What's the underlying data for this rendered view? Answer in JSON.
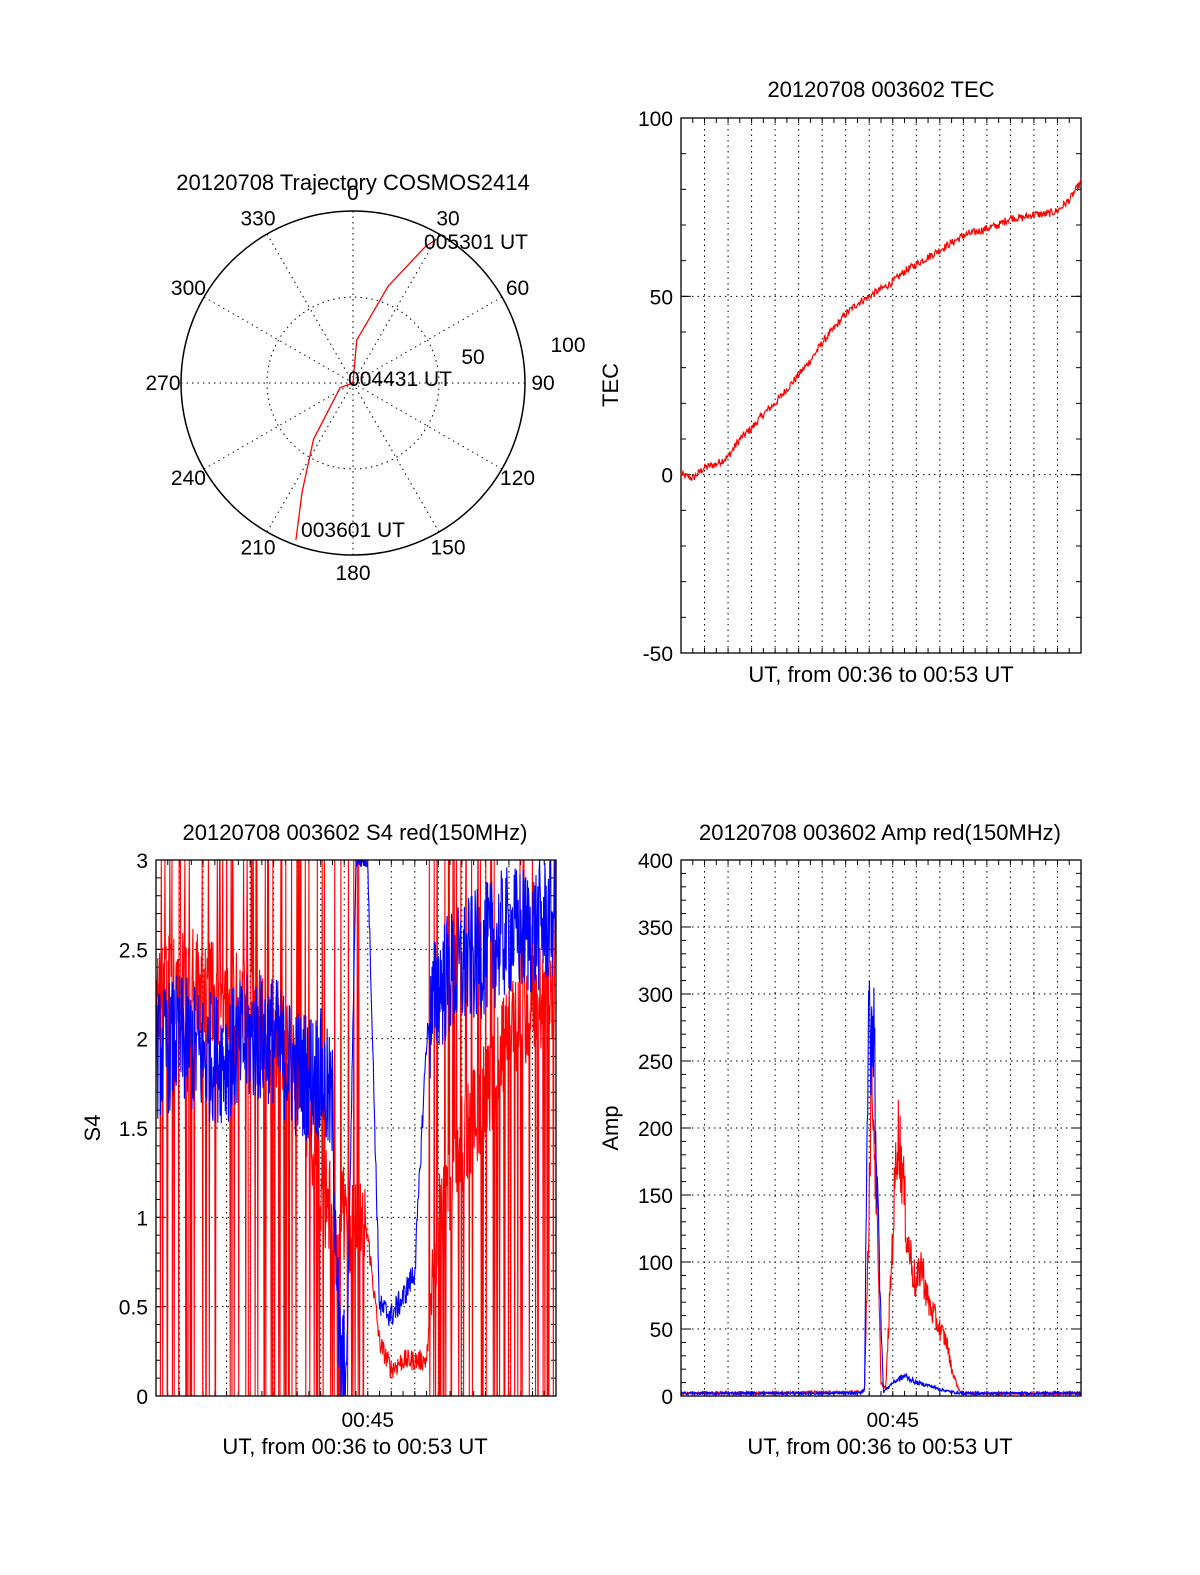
{
  "colors": {
    "red": "#ff0000",
    "blue": "#0000ff",
    "frame": "#000000"
  },
  "chart_data": [
    {
      "type": "polar",
      "title": "20120708 Trajectory COSMOS2414",
      "angle_labels": [
        "0",
        "30",
        "60",
        "90",
        "120",
        "150",
        "180",
        "210",
        "240",
        "270",
        "300",
        "330"
      ],
      "angle_values_deg": [
        0,
        30,
        60,
        90,
        120,
        150,
        180,
        210,
        240,
        270,
        300,
        330
      ],
      "radial_labels": [
        "50",
        "100"
      ],
      "radial_max": 100,
      "grid": true,
      "series": [
        {
          "color": "red",
          "points_az_r": [
            [
              200,
              97
            ],
            [
              205,
              70
            ],
            [
              215,
              40
            ],
            [
              250,
              8
            ],
            [
              0,
              0
            ],
            [
              5,
              25
            ],
            [
              20,
              60
            ],
            [
              28,
              90
            ],
            [
              30,
              96
            ]
          ]
        }
      ],
      "annotations": [
        {
          "text": "003601 UT",
          "az": 200,
          "r": 97
        },
        {
          "text": "004431 UT",
          "az": 0,
          "r": 0
        },
        {
          "text": "005301 UT",
          "az": 30,
          "r": 96
        }
      ]
    },
    {
      "type": "line",
      "title": "20120708 003602 TEC",
      "xlabel": "UT, from 00:36 to 00:53 UT",
      "ylabel": "TEC",
      "xlim": [
        0,
        17
      ],
      "ylim": [
        -50,
        100
      ],
      "yticks": [
        "-50",
        "0",
        "50",
        "100"
      ],
      "grid": true,
      "series": [
        {
          "color": "red",
          "x": [
            0,
            0.5,
            1,
            1.5,
            2,
            2.5,
            3,
            3.5,
            4,
            4.5,
            5,
            5.5,
            6,
            6.5,
            7,
            7.5,
            8,
            8.5,
            9,
            9.5,
            10,
            10.5,
            11,
            11.5,
            12,
            12.5,
            13,
            13.5,
            14,
            14.5,
            15,
            15.5,
            16,
            16.5,
            17
          ],
          "y": [
            0,
            -1,
            2,
            3,
            5,
            10,
            13,
            17,
            20,
            24,
            28,
            32,
            37,
            41,
            45,
            48,
            50,
            52,
            54,
            57,
            59,
            61,
            63,
            65,
            67,
            68,
            69,
            70,
            72,
            72,
            73,
            73,
            74,
            77,
            82
          ]
        }
      ]
    },
    {
      "type": "line",
      "title": "20120708 003602 S4 red(150MHz)",
      "xlabel": "UT, from 00:36 to 00:53 UT",
      "ylabel": "S4",
      "xlim": [
        0,
        17
      ],
      "ylim": [
        0,
        3
      ],
      "xticks": [
        {
          "value": 9,
          "label": "00:45"
        }
      ],
      "yticks": [
        "0",
        "0.5",
        "1",
        "1.5",
        "2",
        "2.5",
        "3"
      ],
      "grid": true,
      "series": [
        {
          "color": "red",
          "x": [
            0,
            1,
            2,
            3,
            4,
            5,
            6,
            6.5,
            7,
            7.5,
            8,
            8.5,
            9,
            9.5,
            10,
            10.5,
            11,
            11.5,
            12,
            12.5,
            13,
            14,
            15,
            16,
            17
          ],
          "y": [
            2.2,
            2.4,
            2.3,
            2.2,
            2.2,
            2.0,
            1.8,
            1.5,
            1.2,
            1.0,
            1.0,
            0.95,
            0.9,
            0.3,
            0.15,
            0.2,
            0.2,
            0.2,
            1.0,
            1.2,
            1.4,
            1.7,
            2.0,
            2.2,
            2.3
          ]
        },
        {
          "color": "blue",
          "x": [
            0,
            1,
            2,
            3,
            4,
            5,
            6,
            7,
            7.5,
            7.8,
            8.1,
            8.5,
            9,
            9.5,
            10,
            10.5,
            11,
            11.5,
            12,
            13,
            14,
            15,
            16,
            17
          ],
          "y": [
            1.9,
            2.0,
            1.9,
            1.9,
            2.0,
            2.0,
            1.8,
            1.8,
            1.6,
            0.2,
            0.12,
            3.0,
            3.0,
            0.5,
            0.45,
            0.55,
            0.7,
            2.0,
            2.3,
            2.4,
            2.5,
            2.6,
            2.6,
            2.7
          ]
        }
      ]
    },
    {
      "type": "line",
      "title": "20120708 003602 Amp red(150MHz)",
      "xlabel": "UT, from 00:36 to 00:53 UT",
      "ylabel": "Amp",
      "xlim": [
        0,
        17
      ],
      "ylim": [
        0,
        400
      ],
      "xticks": [
        {
          "value": 9,
          "label": "00:45"
        }
      ],
      "yticks": [
        "0",
        "50",
        "100",
        "150",
        "200",
        "250",
        "300",
        "350",
        "400"
      ],
      "grid": true,
      "series": [
        {
          "color": "red",
          "x": [
            0,
            7.6,
            7.8,
            8.0,
            8.1,
            8.3,
            8.5,
            8.7,
            9.0,
            9.2,
            9.4,
            9.6,
            9.8,
            10.0,
            10.2,
            10.5,
            11.0,
            11.3,
            11.5,
            11.8,
            12.0,
            17
          ],
          "y": [
            2,
            3,
            5,
            150,
            250,
            150,
            10,
            5,
            120,
            200,
            170,
            120,
            100,
            80,
            100,
            70,
            50,
            40,
            20,
            5,
            2,
            2
          ]
        },
        {
          "color": "blue",
          "x": [
            0,
            7.6,
            7.8,
            7.9,
            8.0,
            8.1,
            8.2,
            8.3,
            8.4,
            8.6,
            9.0,
            9.5,
            10.0,
            10.5,
            11.0,
            11.5,
            12.0,
            17
          ],
          "y": [
            2,
            2,
            5,
            200,
            285,
            250,
            280,
            180,
            120,
            3,
            10,
            15,
            10,
            8,
            5,
            3,
            2,
            2
          ]
        }
      ]
    }
  ]
}
